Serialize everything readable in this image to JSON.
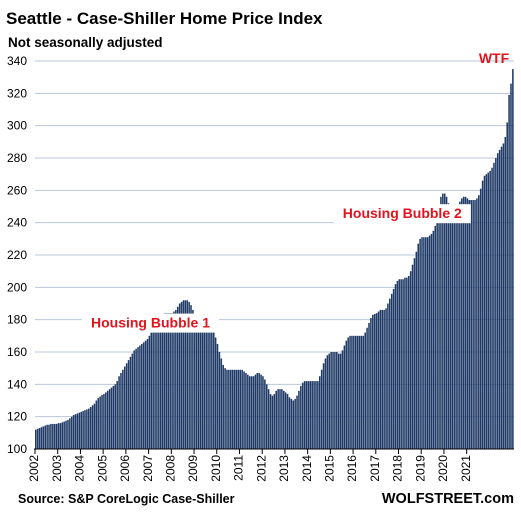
{
  "chart_data": {
    "type": "bar",
    "title": "Seattle - Case-Shiller Home Price Index",
    "subtitle": "Not seasonally adjusted",
    "source": "Source: S&P CoreLogic Case-Shiller",
    "brand": "WOLFSTREET.com",
    "ylim": [
      100,
      340
    ],
    "y_ticks": [
      100,
      120,
      140,
      160,
      180,
      200,
      220,
      240,
      260,
      280,
      300,
      320,
      340
    ],
    "x_tick_labels": [
      "2002",
      "2003",
      "2004",
      "2005",
      "2006",
      "2007",
      "2008",
      "2009",
      "2010",
      "2011",
      "2012",
      "2013",
      "2014",
      "2015",
      "2016",
      "2017",
      "2018",
      "2019",
      "2020",
      "2021"
    ],
    "grid": true,
    "bar_color": "#1f3a66",
    "grid_color": "#b8c7dc",
    "annotation_color": "#e0141e",
    "annotations": [
      {
        "text": "Housing Bubble 1",
        "date": "2007-02"
      },
      {
        "text": "Housing Bubble 2",
        "date": "2018-03"
      },
      {
        "text": "WTF",
        "date": "2021-05"
      }
    ],
    "series": [
      {
        "start": "2002-01",
        "frequency": "monthly",
        "values": [
          112,
          112.5,
          113,
          113.5,
          114,
          114.5,
          115,
          115,
          115.5,
          115.5,
          115.5,
          115.5,
          116,
          116,
          116.5,
          117,
          117.5,
          118,
          119,
          120,
          121,
          121.5,
          122,
          122.5,
          123,
          123.5,
          124,
          124.5,
          125,
          126,
          127,
          128,
          130,
          131.5,
          132.5,
          133.5,
          134,
          135,
          136,
          137,
          138,
          139,
          140,
          142,
          145,
          147,
          149,
          151,
          153,
          155,
          157,
          159,
          161,
          162,
          163,
          164,
          165,
          166,
          167,
          168,
          170,
          172,
          175,
          178,
          180,
          182,
          183,
          183.5,
          184,
          184,
          184,
          184,
          184,
          185,
          186,
          188,
          190,
          191,
          192,
          192,
          192,
          191,
          189,
          186,
          183,
          181,
          180,
          179,
          179,
          179,
          178,
          178,
          177,
          176,
          173,
          169,
          165,
          160,
          156,
          152,
          150,
          149,
          149,
          149,
          149,
          149,
          149,
          149,
          149,
          149,
          148,
          147,
          146,
          145,
          145,
          145,
          146,
          147,
          147,
          146,
          145,
          143,
          140,
          137,
          134,
          133,
          134,
          136,
          137,
          137,
          137,
          136,
          135,
          134,
          132,
          131,
          130,
          131,
          133,
          136,
          139,
          141,
          142,
          142,
          142,
          142,
          142,
          142,
          142,
          142,
          145,
          149,
          153,
          156,
          158,
          159,
          160,
          160,
          160,
          160,
          159,
          159,
          161,
          164,
          167,
          169,
          170,
          170,
          170,
          170,
          170,
          170,
          170,
          170,
          172,
          175,
          178,
          181,
          183,
          183.5,
          184,
          185,
          186,
          186,
          186,
          187,
          190,
          193,
          196,
          199,
          202,
          204,
          205,
          205,
          205,
          206,
          206,
          207,
          210,
          214,
          218,
          222,
          227,
          230,
          231,
          231,
          231,
          231,
          232,
          233,
          235,
          238,
          242,
          249,
          256,
          258,
          258,
          256,
          252,
          249,
          246,
          245,
          247,
          250,
          253,
          255,
          256,
          256,
          255,
          254,
          254,
          254,
          254,
          255,
          257,
          261,
          266,
          269,
          270,
          271,
          272,
          274,
          277,
          280,
          283,
          285,
          287,
          289,
          293,
          302,
          319,
          326,
          335
        ]
      }
    ]
  }
}
